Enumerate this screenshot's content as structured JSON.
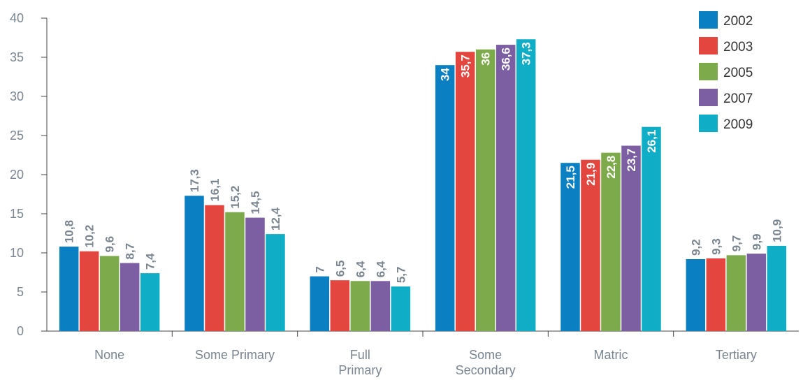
{
  "chart_data": {
    "type": "bar",
    "categories": [
      "None",
      "Some Primary",
      "Full Primary",
      "Some Secondary",
      "Matric",
      "Tertiary"
    ],
    "series": [
      {
        "name": "2002",
        "color": "#0a7fc1",
        "values": [
          10.8,
          17.3,
          7,
          34,
          21.5,
          9.2
        ],
        "labels": [
          "10,8",
          "17,3",
          "7",
          "34",
          "21,5",
          "9,2"
        ]
      },
      {
        "name": "2003",
        "color": "#e2463f",
        "values": [
          10.2,
          16.1,
          6.5,
          35.7,
          21.9,
          9.3
        ],
        "labels": [
          "10,2",
          "16,1",
          "6,5",
          "35,7",
          "21,9",
          "9,3"
        ]
      },
      {
        "name": "2005",
        "color": "#7daa4a",
        "values": [
          9.6,
          15.2,
          6.4,
          36,
          22.8,
          9.7
        ],
        "labels": [
          "9,6",
          "15,2",
          "6,4",
          "36",
          "22,8",
          "9,7"
        ]
      },
      {
        "name": "2007",
        "color": "#7b5fa2",
        "values": [
          8.7,
          14.5,
          6.4,
          36.6,
          23.7,
          9.9
        ],
        "labels": [
          "8,7",
          "14,5",
          "6,4",
          "36,6",
          "23,7",
          "9,9"
        ]
      },
      {
        "name": "2009",
        "color": "#0fadc6",
        "values": [
          7.4,
          12.4,
          5.7,
          37.3,
          26.1,
          10.9
        ],
        "labels": [
          "7,4",
          "12,4",
          "5,7",
          "37,3",
          "26,1",
          "10,9"
        ]
      }
    ],
    "yticks": [
      "0",
      "5",
      "10",
      "15",
      "20",
      "25",
      "30",
      "35",
      "40"
    ],
    "ylim": [
      0,
      40
    ],
    "legend_position": "top-right",
    "inside_label_categories": [
      "Some Secondary",
      "Matric"
    ],
    "label_color_outside": "#7a8590",
    "label_color_inside": "#ffffff",
    "grid": false
  }
}
